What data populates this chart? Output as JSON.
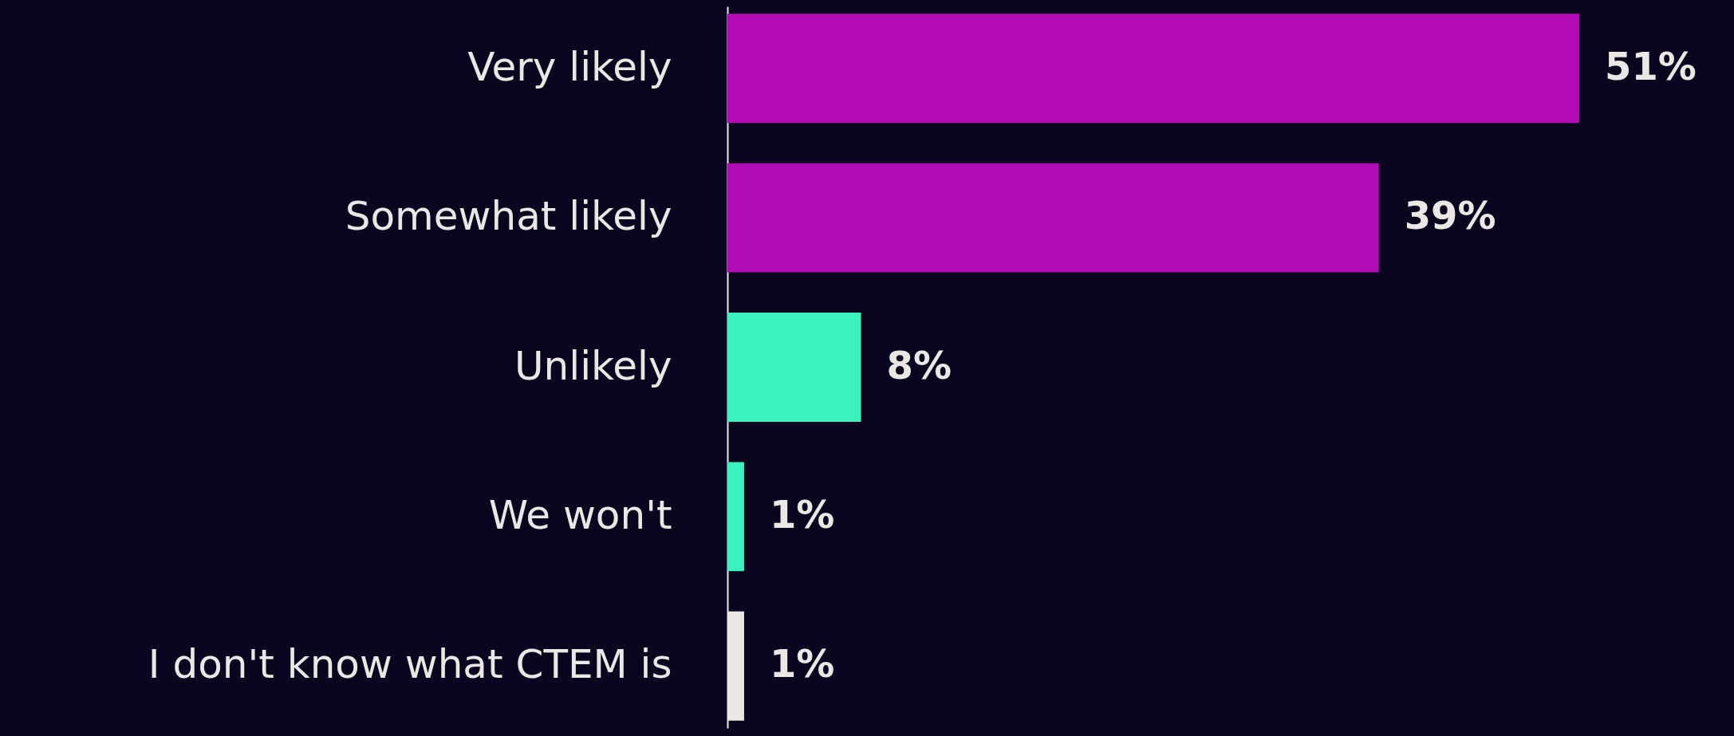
{
  "chart_data": {
    "type": "bar",
    "orientation": "horizontal",
    "categories": [
      "Very likely",
      "Somewhat likely",
      "Unlikely",
      "We won't",
      "I don't know what CTEM is"
    ],
    "values": [
      51,
      39,
      8,
      1,
      1
    ],
    "value_labels": [
      "51%",
      "39%",
      "8%",
      "1%",
      "1%"
    ],
    "colors": [
      "#b20bb4",
      "#b00cb6",
      "#3bf2bd",
      "#3bf2bd",
      "#ebe7e4"
    ]
  }
}
